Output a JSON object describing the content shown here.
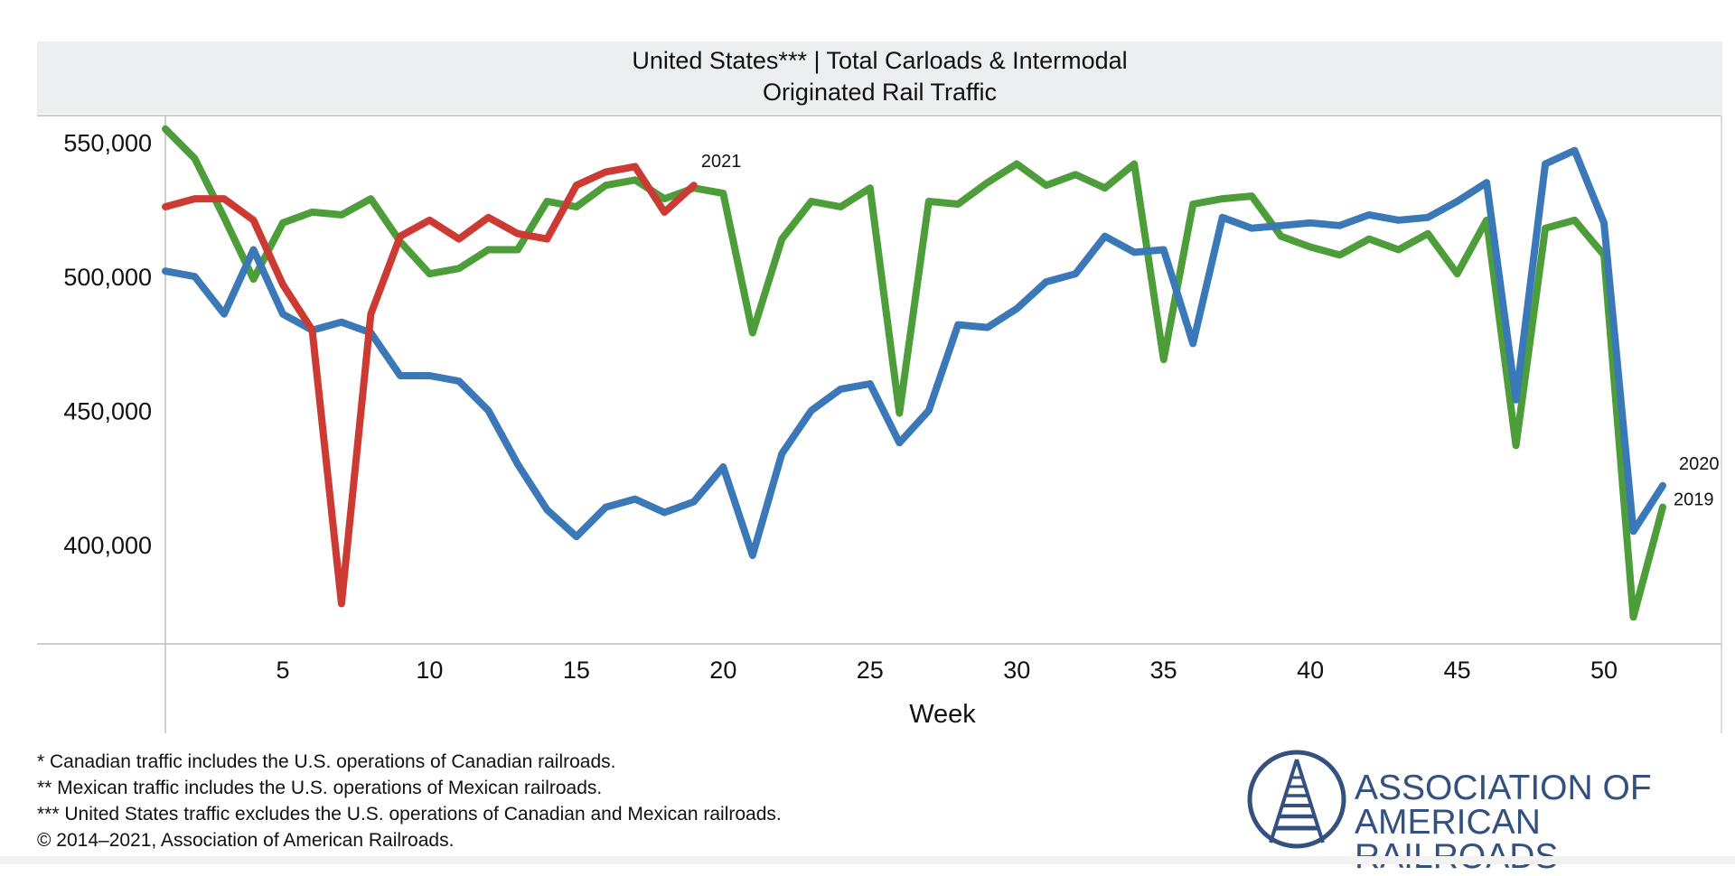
{
  "chart_data": {
    "type": "line",
    "title": "United States*** | Total Carloads & Intermodal",
    "subtitle": "Originated Rail Traffic",
    "xlabel": "Week",
    "ylabel": "",
    "xlim": [
      1,
      54
    ],
    "ylim": [
      363000,
      560000
    ],
    "x_ticks": [
      5,
      10,
      15,
      20,
      25,
      30,
      35,
      40,
      45,
      50
    ],
    "y_ticks": [
      400000,
      450000,
      500000,
      550000
    ],
    "y_tick_labels": [
      "400,000",
      "450,000",
      "500,000",
      "550,000"
    ],
    "x_tick_labels": [
      "5",
      "10",
      "15",
      "20",
      "25",
      "30",
      "35",
      "40",
      "45",
      "50"
    ],
    "grid": false,
    "series": [
      {
        "name": "2019",
        "color": "#4d9e3a",
        "x": [
          1,
          2,
          3,
          4,
          5,
          6,
          7,
          8,
          9,
          10,
          11,
          12,
          13,
          14,
          15,
          16,
          17,
          18,
          19,
          20,
          21,
          22,
          23,
          24,
          25,
          26,
          27,
          28,
          29,
          30,
          31,
          32,
          33,
          34,
          35,
          36,
          37,
          38,
          39,
          40,
          41,
          42,
          43,
          44,
          45,
          46,
          47,
          48,
          49,
          50,
          51,
          52
        ],
        "values": [
          555000,
          544000,
          522000,
          499000,
          520000,
          524000,
          523000,
          529000,
          513000,
          501000,
          503000,
          510000,
          510000,
          528000,
          526000,
          534000,
          536000,
          529000,
          533000,
          531000,
          479000,
          514000,
          528000,
          526000,
          533000,
          449000,
          528000,
          527000,
          535000,
          542000,
          534000,
          538000,
          533000,
          542000,
          469000,
          527000,
          529000,
          530000,
          515000,
          511000,
          508000,
          514000,
          510000,
          516000,
          501000,
          521000,
          437000,
          518000,
          521000,
          508000,
          373000,
          414000
        ]
      },
      {
        "name": "2020",
        "color": "#3a78b8",
        "x": [
          1,
          2,
          3,
          4,
          5,
          6,
          7,
          8,
          9,
          10,
          11,
          12,
          13,
          14,
          15,
          16,
          17,
          18,
          19,
          20,
          21,
          22,
          23,
          24,
          25,
          26,
          27,
          28,
          29,
          30,
          31,
          32,
          33,
          34,
          35,
          36,
          37,
          38,
          39,
          40,
          41,
          42,
          43,
          44,
          45,
          46,
          47,
          48,
          49,
          50,
          51,
          52
        ],
        "values": [
          502000,
          500000,
          486000,
          510000,
          486000,
          480000,
          483000,
          479000,
          463000,
          463000,
          461000,
          450000,
          430000,
          413000,
          403000,
          414000,
          417000,
          412000,
          416000,
          429000,
          396000,
          434000,
          450000,
          458000,
          460000,
          438000,
          450000,
          482000,
          481000,
          488000,
          498000,
          501000,
          515000,
          509000,
          510000,
          475000,
          522000,
          518000,
          519000,
          520000,
          519000,
          523000,
          521000,
          522000,
          528000,
          535000,
          454000,
          542000,
          547000,
          520000,
          405000,
          422000
        ]
      },
      {
        "name": "2021",
        "color": "#cc3b33",
        "x": [
          1,
          2,
          3,
          4,
          5,
          6,
          7,
          8,
          9,
          10,
          11,
          12,
          13,
          14,
          15,
          16,
          17,
          18,
          19
        ],
        "values": [
          526000,
          529000,
          529000,
          521000,
          497000,
          480000,
          378000,
          486000,
          515000,
          521000,
          514000,
          522000,
          516000,
          514000,
          534000,
          539000,
          541000,
          524000,
          534000
        ]
      }
    ],
    "end_labels": [
      "2021",
      "2020",
      "2019"
    ]
  },
  "footnotes": [
    "* Canadian traffic includes the U.S. operations of Canadian railroads.",
    "** Mexican traffic includes the U.S. operations of Mexican railroads.",
    "*** United States traffic excludes the U.S. operations of Canadian and Mexican railroads.",
    "© 2014–2021, Association of American Railroads."
  ],
  "logo": {
    "line1": "ASSOCIATION OF",
    "line2": "AMERICAN RAILROADS",
    "color": "#33507f"
  }
}
